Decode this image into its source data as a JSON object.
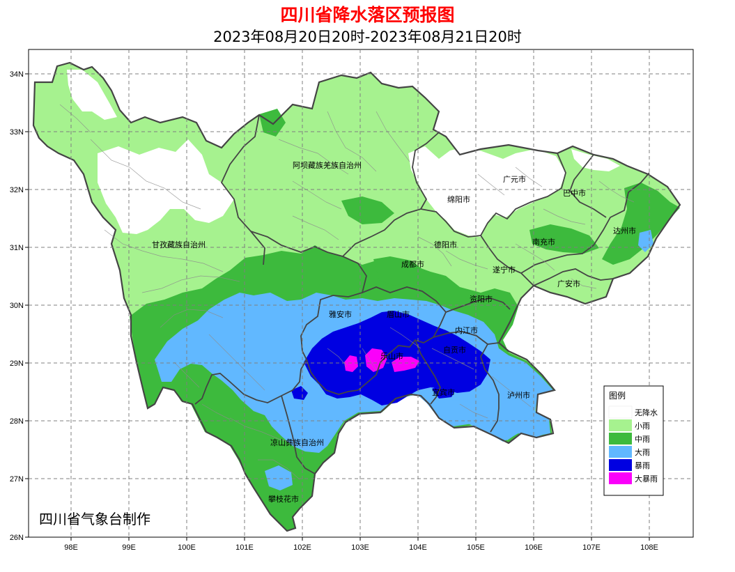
{
  "title": "四川省降水落区预报图",
  "subtitle": "2023年08月20日20时-2023年08月21日20时",
  "credit": "四川省气象台制作",
  "axis": {
    "x_ticks": [
      "98E",
      "99E",
      "100E",
      "101E",
      "102E",
      "103E",
      "104E",
      "105E",
      "106E",
      "107E",
      "108E"
    ],
    "y_ticks": [
      "34N",
      "33N",
      "32N",
      "31N",
      "30N",
      "29N",
      "28N",
      "27N",
      "26N"
    ]
  },
  "places": [
    "阿坝藏族羌族自治州",
    "广元市",
    "巴中市",
    "绵阳市",
    "达州市",
    "甘孜藏族自治州",
    "德阳市",
    "南充市",
    "成都市",
    "遂宁市",
    "广安市",
    "资阳市",
    "雅安市",
    "眉山市",
    "内江市",
    "乐山市",
    "自贡市",
    "宜宾市",
    "泸州市",
    "凉山彝族自治州",
    "攀枝花市"
  ],
  "legend": {
    "title": "图例",
    "items": [
      {
        "label": "无降水",
        "color": "#ffffff"
      },
      {
        "label": "小雨",
        "color": "#a6f28f"
      },
      {
        "label": "中雨",
        "color": "#3dba3d"
      },
      {
        "label": "大雨",
        "color": "#61b8ff"
      },
      {
        "label": "暴雨",
        "color": "#0000e1"
      },
      {
        "label": "大暴雨",
        "color": "#fa00fa"
      }
    ]
  }
}
